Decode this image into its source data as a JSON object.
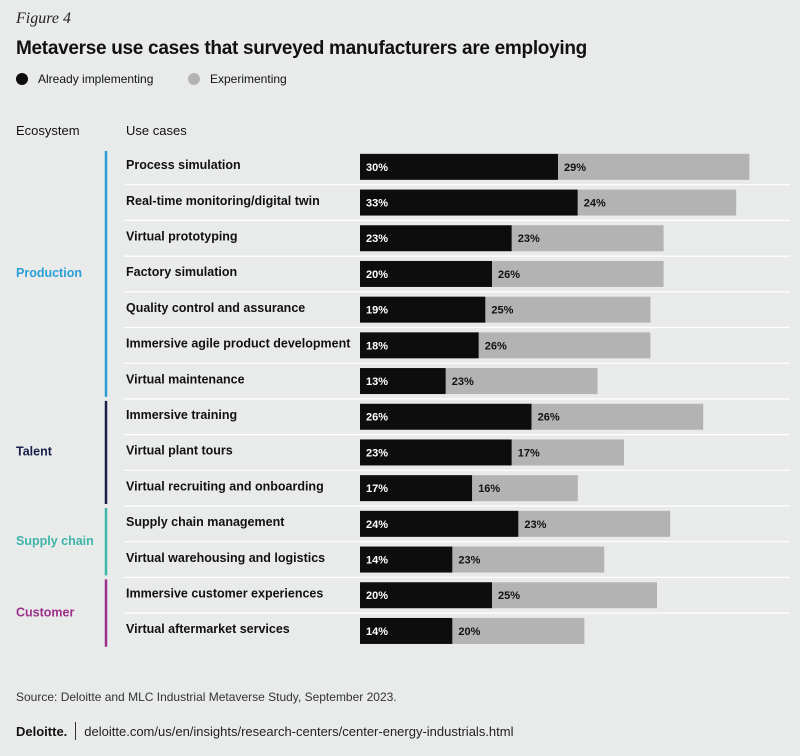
{
  "figure_label": "Figure 4",
  "title": "Metaverse use cases that surveyed manufacturers are employing",
  "legend": [
    {
      "label": "Already implementing",
      "color": "#0d0d0d"
    },
    {
      "label": "Experimenting",
      "color": "#b3b3b3"
    }
  ],
  "headers": {
    "ecosystem": "Ecosystem",
    "use_cases": "Use cases"
  },
  "source": "Source: Deloitte and MLC Industrial Metaverse Study, September 2023.",
  "footer": {
    "brand": "Deloitte.",
    "url": "deloitte.com/us/en/insights/research-centers/center-energy-industrials.html"
  },
  "chart_data": {
    "type": "bar",
    "orientation": "horizontal",
    "stacked": true,
    "value_suffix": "%",
    "series": [
      {
        "name": "Already implementing",
        "color": "#0d0d0d"
      },
      {
        "name": "Experimenting",
        "color": "#b3b3b3"
      }
    ],
    "groups": [
      {
        "name": "Production",
        "color": "#2a9fd6",
        "rows": [
          {
            "label": "Process simulation",
            "values": [
              30,
              29
            ]
          },
          {
            "label": "Real-time monitoring/digital twin",
            "values": [
              33,
              24
            ]
          },
          {
            "label": "Virtual prototyping",
            "values": [
              23,
              23
            ]
          },
          {
            "label": "Factory simulation",
            "values": [
              20,
              26
            ]
          },
          {
            "label": "Quality control and assurance",
            "values": [
              19,
              25
            ]
          },
          {
            "label": "Immersive agile product development",
            "values": [
              18,
              26
            ]
          },
          {
            "label": "Virtual maintenance",
            "values": [
              13,
              23
            ]
          }
        ]
      },
      {
        "name": "Talent",
        "color": "#1a1f4a",
        "rows": [
          {
            "label": "Immersive training",
            "values": [
              26,
              26
            ]
          },
          {
            "label": "Virtual plant tours",
            "values": [
              23,
              17
            ]
          },
          {
            "label": "Virtual recruiting and onboarding",
            "values": [
              17,
              16
            ]
          }
        ]
      },
      {
        "name": "Supply chain",
        "color": "#3db5a8",
        "rows": [
          {
            "label": "Supply chain management",
            "values": [
              24,
              23
            ]
          },
          {
            "label": "Virtual warehousing and logistics",
            "values": [
              14,
              23
            ]
          }
        ]
      },
      {
        "name": "Customer",
        "color": "#9b2f8a",
        "rows": [
          {
            "label": "Immersive customer experiences",
            "values": [
              20,
              25
            ]
          },
          {
            "label": "Virtual aftermarket services",
            "values": [
              14,
              20
            ]
          }
        ]
      }
    ]
  }
}
